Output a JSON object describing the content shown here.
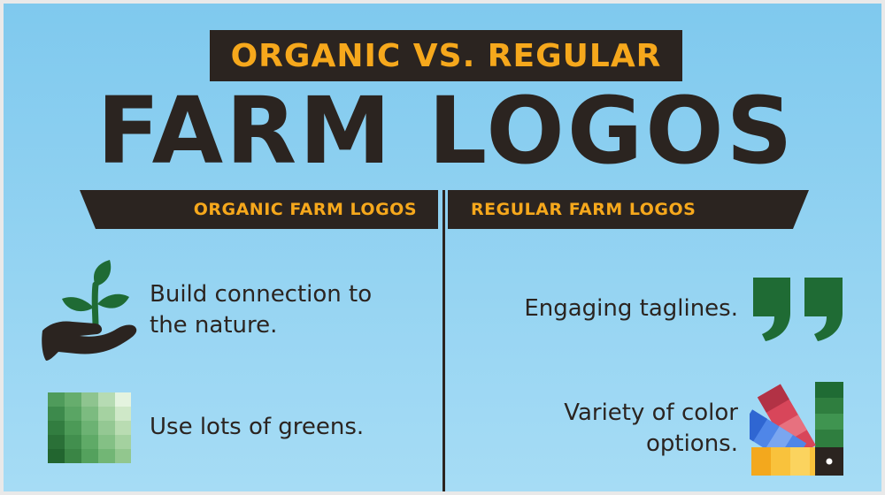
{
  "header": {
    "subtitle": "ORGANIC VS. REGULAR",
    "title": "FARM LOGOS"
  },
  "columns": {
    "left": {
      "heading": "ORGANIC FARM LOGOS",
      "items": [
        {
          "text": "Build connection to\nthe nature.",
          "icon": "plant-in-hand-icon"
        },
        {
          "text": "Use lots of greens.",
          "icon": "green-palette-icon"
        }
      ]
    },
    "right": {
      "heading": "REGULAR FARM LOGOS",
      "items": [
        {
          "text": "Engaging taglines.",
          "icon": "quote-marks-icon"
        },
        {
          "text": "Variety of color\noptions.",
          "icon": "color-swatch-fan-icon"
        }
      ]
    }
  },
  "colors": {
    "background": "#8fd2f2",
    "dark": "#2b2420",
    "accent": "#f6a81c",
    "green": "#1f6b34"
  }
}
